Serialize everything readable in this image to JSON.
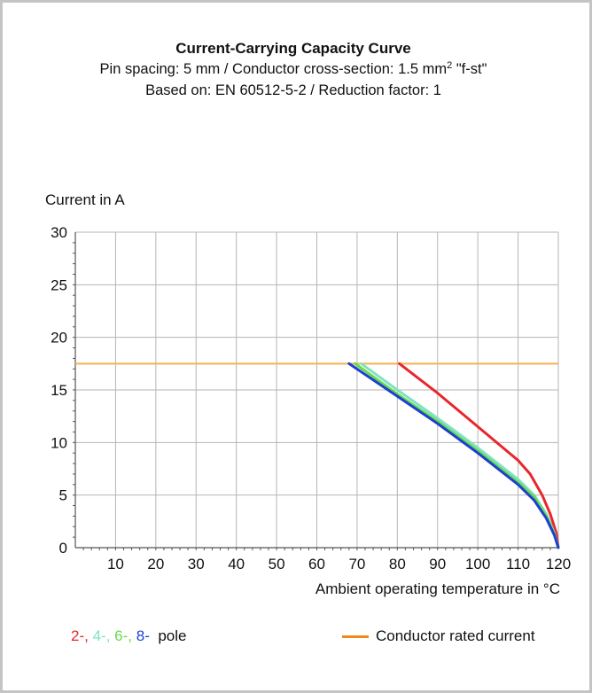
{
  "header": {
    "title": "Current-Carrying Capacity Curve",
    "subtitle_pre": "Pin spacing: 5 mm / Conductor cross-section: 1.5 mm",
    "subtitle_sup": "2",
    "subtitle_post": " \"f-st\"",
    "subtitle2": "Based on: EN 60512-5-2 / Reduction factor: 1"
  },
  "legend": {
    "poles": [
      {
        "text": "2-,",
        "color": "#e8262d"
      },
      {
        "text": "4-,",
        "color": "#7fe3c0"
      },
      {
        "text": "6-,",
        "color": "#66d94a"
      },
      {
        "text": "8-",
        "color": "#1f3fd1"
      }
    ],
    "pole_suffix": "pole",
    "rated_label": "Conductor rated current",
    "rated_color": "#f08a1c"
  },
  "chart_data": {
    "type": "line",
    "ylabel": "Current in A",
    "xlabel": "Ambient operating temperature in °C",
    "xlim": [
      0,
      120
    ],
    "ylim": [
      0,
      30
    ],
    "xticks": [
      10,
      20,
      30,
      40,
      50,
      60,
      70,
      80,
      90,
      100,
      110,
      120
    ],
    "yticks": [
      0,
      5,
      10,
      15,
      20,
      25,
      30
    ],
    "grid": true,
    "rated_current": {
      "name": "Conductor rated current",
      "value": 17.5,
      "x": [
        0,
        120
      ],
      "color": "#f5b24d"
    },
    "series": [
      {
        "name": "2-",
        "color": "#e8262d",
        "x": [
          80.5,
          90,
          100,
          110,
          113,
          116,
          118,
          119.5,
          120
        ],
        "y": [
          17.5,
          14.7,
          11.5,
          8.3,
          7.0,
          5.0,
          3.2,
          1.4,
          0
        ]
      },
      {
        "name": "4-",
        "color": "#7fe3c0",
        "x": [
          71,
          80,
          90,
          100,
          110,
          114,
          117,
          119,
          120
        ],
        "y": [
          17.5,
          15.0,
          12.3,
          9.5,
          6.5,
          5.0,
          3.2,
          1.4,
          0
        ]
      },
      {
        "name": "6-",
        "color": "#66d94a",
        "x": [
          69.5,
          80,
          90,
          100,
          110,
          114,
          117,
          119,
          120
        ],
        "y": [
          17.5,
          14.6,
          12.0,
          9.2,
          6.2,
          4.8,
          3.0,
          1.3,
          0
        ]
      },
      {
        "name": "8-",
        "color": "#1f3fd1",
        "x": [
          68,
          80,
          90,
          100,
          110,
          114,
          117,
          119,
          120
        ],
        "y": [
          17.5,
          14.4,
          11.8,
          9.0,
          6.0,
          4.5,
          2.8,
          1.2,
          0
        ]
      }
    ]
  }
}
